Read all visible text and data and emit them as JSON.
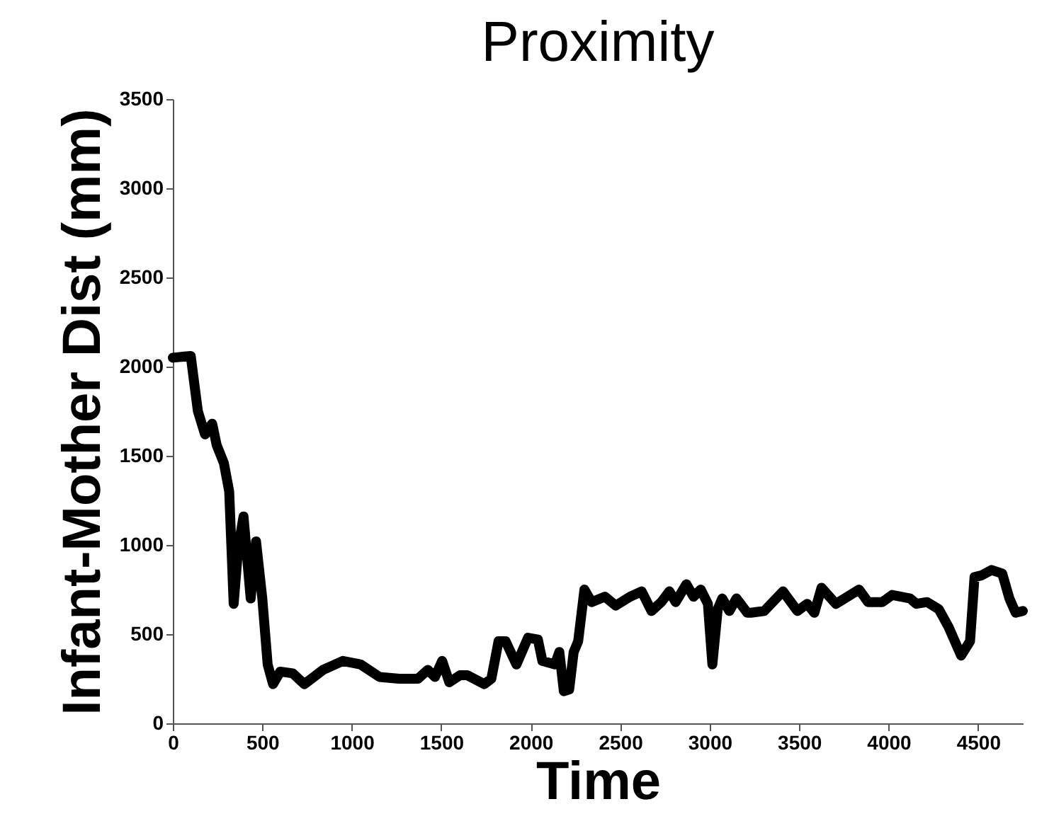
{
  "chart_data": {
    "type": "line",
    "title": "Proximity",
    "xlabel": "Time",
    "ylabel": "Infant-Mother Dist (mm)",
    "xlim": [
      0,
      4750
    ],
    "ylim": [
      0,
      3500
    ],
    "xticks": [
      0,
      500,
      1000,
      1500,
      2000,
      2500,
      3000,
      3500,
      4000,
      4500
    ],
    "yticks": [
      0,
      500,
      1000,
      1500,
      2000,
      2500,
      3000,
      3500
    ],
    "grid": false,
    "legend": false,
    "marker": "none",
    "line_style": "solid",
    "series": [
      {
        "color": "#000000",
        "x": [
          0,
          100,
          140,
          180,
          220,
          245,
          285,
          315,
          340,
          365,
          395,
          435,
          465,
          500,
          530,
          560,
          600,
          670,
          735,
          840,
          950,
          1050,
          1155,
          1265,
          1370,
          1425,
          1465,
          1505,
          1545,
          1605,
          1645,
          1740,
          1780,
          1820,
          1860,
          1920,
          1985,
          2040,
          2065,
          2135,
          2160,
          2185,
          2215,
          2240,
          2265,
          2300,
          2340,
          2415,
          2475,
          2555,
          2620,
          2675,
          2730,
          2775,
          2810,
          2870,
          2910,
          2950,
          2990,
          3015,
          3045,
          3070,
          3110,
          3150,
          3210,
          3230,
          3305,
          3410,
          3490,
          3545,
          3585,
          3625,
          3705,
          3835,
          3885,
          3965,
          4020,
          4120,
          4155,
          4215,
          4280,
          4335,
          4405,
          4455,
          4480,
          4520,
          4575,
          4635,
          4675,
          4710,
          4750
        ],
        "values": [
          2050,
          2060,
          1750,
          1620,
          1680,
          1560,
          1460,
          1300,
          670,
          980,
          1160,
          700,
          1020,
          700,
          330,
          220,
          290,
          280,
          220,
          300,
          350,
          330,
          260,
          250,
          250,
          300,
          260,
          350,
          230,
          270,
          270,
          220,
          250,
          460,
          460,
          330,
          480,
          470,
          350,
          330,
          400,
          180,
          190,
          400,
          460,
          750,
          680,
          710,
          660,
          710,
          740,
          630,
          680,
          740,
          680,
          780,
          710,
          750,
          670,
          330,
          640,
          700,
          630,
          700,
          620,
          620,
          630,
          740,
          630,
          670,
          620,
          760,
          670,
          750,
          680,
          680,
          720,
          700,
          670,
          680,
          640,
          540,
          380,
          460,
          820,
          830,
          860,
          840,
          700,
          620,
          630
        ]
      }
    ]
  }
}
